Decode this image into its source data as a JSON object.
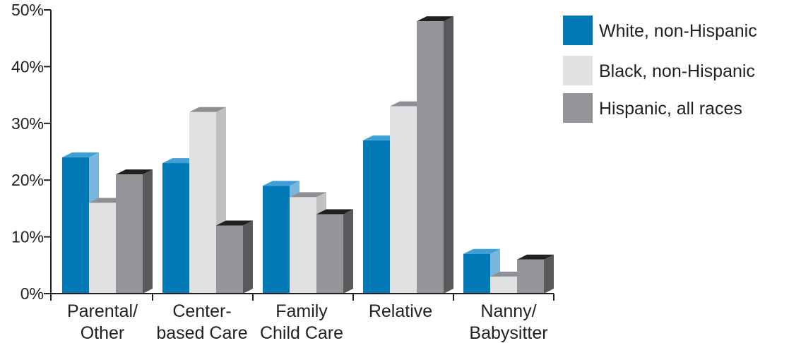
{
  "chart_data": {
    "type": "bar",
    "title": "",
    "xlabel": "",
    "ylabel": "",
    "ylim": [
      0,
      50
    ],
    "y_ticks": [
      0,
      10,
      20,
      30,
      40,
      50
    ],
    "y_tick_labels": [
      "0%",
      "10%",
      "20%",
      "30%",
      "40%",
      "50%"
    ],
    "categories": [
      [
        "Parental/",
        "Other"
      ],
      [
        "Center-",
        "based Care"
      ],
      [
        "Family",
        "Child Care"
      ],
      [
        "Relative"
      ],
      [
        "Nanny/",
        "Babysitter"
      ]
    ],
    "series": [
      {
        "name": "White, non-Hispanic",
        "values": [
          24,
          23,
          19,
          27,
          7
        ],
        "color": "#0079b6",
        "top_color": "#3fa0d6",
        "side_color": "#7ab6dc"
      },
      {
        "name": "Black, non-Hispanic",
        "values": [
          16,
          32,
          17,
          33,
          3
        ],
        "color": "#e0e1e3",
        "top_color": "#8e8f92",
        "side_color": "#bfc0c2"
      },
      {
        "name": "Hispanic, all races",
        "values": [
          21,
          12,
          14,
          48,
          6
        ],
        "color": "#939598",
        "top_color": "#231f20",
        "side_color": "#58595b"
      }
    ],
    "legend_position": "right",
    "grid": false,
    "style": "3d-bar"
  }
}
